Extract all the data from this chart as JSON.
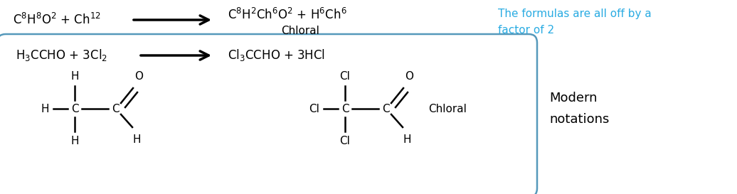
{
  "bg_color": "#ffffff",
  "top_reactant": "C$^{8}$H$^{8}$O$^{2}$ + Ch$^{12}$",
  "top_product": "C$^{8}$H$^{2}$Ch$^{6}$O$^{2}$ + H$^{6}$Ch$^{6}$",
  "top_product_label": "Chloral",
  "bottom_reactant": "H$_3$CCHO + 3Cl$_2$",
  "bottom_product": "Cl$_3$CCHO + 3HCl",
  "note_text": "The formulas are all off by a\nfactor of 2",
  "note_color": "#29abe2",
  "side_label_line1": "Modern",
  "side_label_line2": "notations",
  "side_label_color": "#000000",
  "arrow_color": "#000000",
  "box_edge_color": "#5599bb",
  "text_color": "#000000",
  "bond_lw": 1.8,
  "struct_fs": 11
}
